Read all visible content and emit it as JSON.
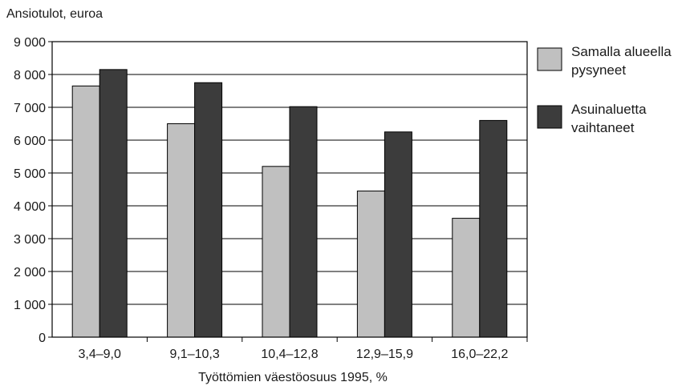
{
  "chart_data": {
    "type": "bar",
    "ylabel": "Ansiotulot, euroa",
    "xlabel": "Työttömien väestöosuus 1995, %",
    "categories": [
      "3,4–9,0",
      "9,1–10,3",
      "10,4–12,8",
      "12,9–15,9",
      "16,0–22,2"
    ],
    "series": [
      {
        "name_lines": [
          "Samalla alueella",
          "pysyneet"
        ],
        "color": "#c0c0c0",
        "values": [
          7650,
          6500,
          5200,
          4450,
          3620
        ]
      },
      {
        "name_lines": [
          "Asuinaluetta",
          "vaihtaneet"
        ],
        "color": "#3c3c3c",
        "values": [
          8150,
          7750,
          7020,
          6250,
          6600
        ]
      }
    ],
    "ylim": [
      0,
      9000
    ],
    "yticks": [
      0,
      1000,
      2000,
      3000,
      4000,
      5000,
      6000,
      7000,
      8000,
      9000
    ],
    "ytick_labels": [
      "0",
      "1 000",
      "2 000",
      "3 000",
      "4 000",
      "5 000",
      "6 000",
      "7 000",
      "8 000",
      "9 000"
    ],
    "grid": true,
    "legend_position": "right"
  }
}
